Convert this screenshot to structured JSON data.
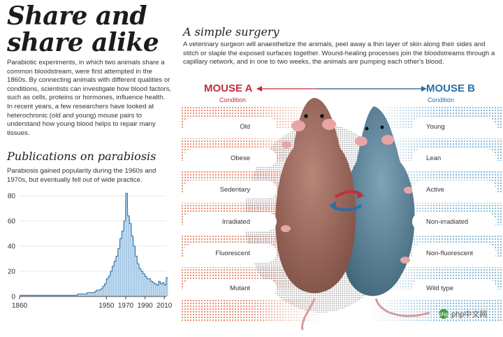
{
  "header": {
    "title": "Share and share alike",
    "intro": "Parabiotic experiments, in which two animals share a common bloodstream, were first attempted in the 1860s. By connecting animals with different qualities or conditions, scientists can investigate how blood factors, such as cells, proteins or hormones, influence health. In recent years, a few researchers have looked at heterochronic (old and young) mouse pairs to understand how young blood helps to repair many tissues."
  },
  "publications": {
    "title": "Publications on parabiosis",
    "description": "Parabiosis gained popularity during the 1960s and 1970s, but eventually fell out of wide practice."
  },
  "chart_data": {
    "type": "bar",
    "title": "Publications on parabiosis",
    "xlabel": "",
    "ylabel": "",
    "xlim": [
      1860,
      2012
    ],
    "ylim": [
      0,
      80
    ],
    "yticks": [
      "0",
      "20",
      "40",
      "60",
      "80"
    ],
    "xticks": [
      "1860",
      "1950",
      "1970",
      "1990",
      "2010"
    ],
    "grid": "horizontal",
    "bar_color": "#a9cbe6",
    "line_color": "#2a6fa8",
    "x": [
      1860,
      1862,
      1864,
      1866,
      1868,
      1870,
      1872,
      1874,
      1876,
      1878,
      1880,
      1882,
      1884,
      1886,
      1888,
      1890,
      1892,
      1894,
      1896,
      1898,
      1900,
      1902,
      1904,
      1906,
      1908,
      1910,
      1912,
      1914,
      1916,
      1918,
      1920,
      1922,
      1924,
      1926,
      1928,
      1930,
      1932,
      1934,
      1936,
      1938,
      1940,
      1942,
      1944,
      1946,
      1948,
      1950,
      1952,
      1954,
      1956,
      1958,
      1960,
      1962,
      1964,
      1966,
      1968,
      1970,
      1972,
      1974,
      1976,
      1978,
      1980,
      1982,
      1984,
      1986,
      1988,
      1990,
      1992,
      1994,
      1996,
      1998,
      2000,
      2002,
      2004,
      2006,
      2008,
      2010,
      2012
    ],
    "values": [
      1,
      1,
      1,
      1,
      1,
      1,
      1,
      1,
      1,
      1,
      1,
      1,
      1,
      1,
      1,
      1,
      1,
      1,
      1,
      1,
      1,
      1,
      1,
      1,
      1,
      1,
      1,
      1,
      1,
      1,
      2,
      2,
      2,
      2,
      2,
      3,
      3,
      3,
      3,
      4,
      5,
      5,
      6,
      8,
      10,
      14,
      16,
      20,
      24,
      28,
      32,
      38,
      46,
      52,
      60,
      82,
      64,
      58,
      48,
      40,
      32,
      26,
      22,
      20,
      18,
      16,
      14,
      14,
      12,
      11,
      10,
      9,
      12,
      10,
      11,
      9,
      15
    ]
  },
  "surgery": {
    "title": "A simple surgery",
    "description": "A veterinary surgeon will anaesthetize the animals, peel away a thin layer of skin along their sides and stitch or staple the exposed surfaces together. Wound-healing processes join the bloodstreams through a capillary network, and in one to two weeks, the animals are pumping each other's blood."
  },
  "mouse_a": {
    "label": "MOUSE A",
    "condition": "Condition",
    "color": "#c0303a",
    "items": [
      "Old",
      "Obese",
      "Sedentary",
      "Irradiated",
      "Fluorescent",
      "Mutant"
    ]
  },
  "mouse_b": {
    "label": "MOUSE B",
    "condition": "Condition",
    "color": "#2a6fa8",
    "items": [
      "Young",
      "Lean",
      "Active",
      "Non-irradiated",
      "Non-fluorescent",
      "Wild type"
    ]
  },
  "watermark": "php中文网"
}
